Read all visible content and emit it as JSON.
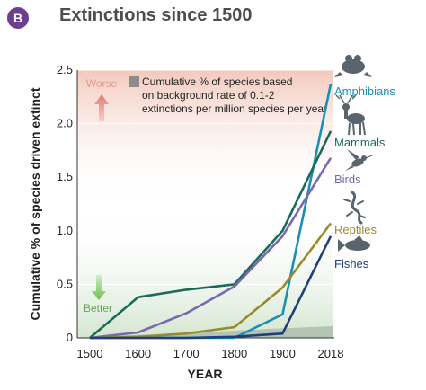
{
  "header": {
    "badge": "B",
    "title": "Extinctions since 1500"
  },
  "chart_data": {
    "type": "line",
    "title": "Extinctions since 1500",
    "xlabel": "YEAR",
    "ylabel": "Cumulative % of species driven extinct",
    "x_ticks": [
      "1500",
      "1600",
      "1700",
      "1800",
      "1900",
      "2018"
    ],
    "y_ticks": [
      "0",
      "0.5",
      "1.0",
      "1.5",
      "2.0",
      "2.5"
    ],
    "ylim": [
      0,
      2.5
    ],
    "annotations": {
      "worse": "Worse",
      "better": "Better",
      "background_note": [
        "Cumulative % of species based",
        "on background rate of 0.1-2",
        "extinctions per million species per year"
      ]
    },
    "series": [
      {
        "name": "Amphibians",
        "color": "#1a8fb5",
        "icon": "frog-icon",
        "points": [
          [
            1500,
            0
          ],
          [
            1600,
            0
          ],
          [
            1700,
            0
          ],
          [
            1800,
            0
          ],
          [
            1900,
            0.22
          ],
          [
            2018,
            2.37
          ]
        ]
      },
      {
        "name": "Mammals",
        "color": "#1b6b5a",
        "icon": "deer-icon",
        "points": [
          [
            1500,
            0
          ],
          [
            1600,
            0.38
          ],
          [
            1700,
            0.45
          ],
          [
            1800,
            0.5
          ],
          [
            1900,
            1.0
          ],
          [
            2018,
            1.93
          ]
        ]
      },
      {
        "name": "Birds",
        "color": "#7a68b0",
        "icon": "hummingbird-icon",
        "points": [
          [
            1500,
            0
          ],
          [
            1600,
            0.05
          ],
          [
            1700,
            0.23
          ],
          [
            1800,
            0.48
          ],
          [
            1900,
            0.95
          ],
          [
            2018,
            1.68
          ]
        ]
      },
      {
        "name": "Reptiles",
        "color": "#9a8a2c",
        "icon": "lizard-icon",
        "points": [
          [
            1500,
            0
          ],
          [
            1600,
            0.01
          ],
          [
            1700,
            0.04
          ],
          [
            1800,
            0.1
          ],
          [
            1900,
            0.47
          ],
          [
            2018,
            1.07
          ]
        ]
      },
      {
        "name": "Fishes",
        "color": "#1e3f7a",
        "icon": "fish-icon",
        "points": [
          [
            1500,
            0
          ],
          [
            1600,
            0
          ],
          [
            1700,
            0
          ],
          [
            1800,
            0.01
          ],
          [
            1900,
            0.04
          ],
          [
            2018,
            0.95
          ]
        ]
      }
    ]
  }
}
